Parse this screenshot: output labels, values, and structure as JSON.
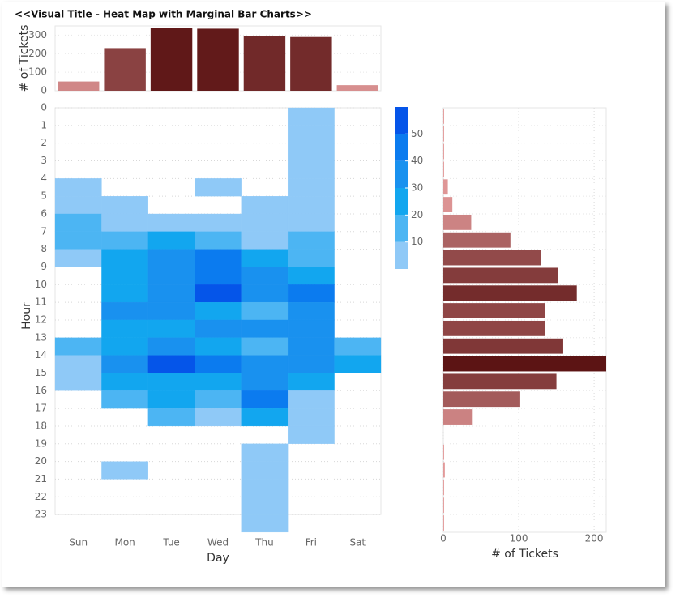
{
  "title": "<<Visual Title - Heat Map with Marginal Bar Charts>>",
  "chart_data": [
    {
      "type": "bar",
      "y_label": "# of Tickets",
      "values": [
        50,
        230,
        340,
        335,
        295,
        290,
        30
      ],
      "ylim": [
        0,
        350
      ],
      "yticks": [
        0,
        100,
        200,
        300
      ],
      "color_range": [
        "#e39a9a",
        "#5c1414"
      ]
    },
    {
      "type": "heatmap",
      "x_label": "Day",
      "y_label": "Hour",
      "x_categories": [
        "Sun",
        "Mon",
        "Tue",
        "Wed",
        "Thu",
        "Fri",
        "Sat"
      ],
      "y_categories": [
        0,
        1,
        2,
        3,
        4,
        5,
        6,
        7,
        8,
        9,
        10,
        11,
        12,
        13,
        14,
        15,
        16,
        17,
        18,
        19,
        20,
        21,
        22,
        23
      ],
      "values": [
        [
          null,
          null,
          null,
          null,
          null,
          3,
          null
        ],
        [
          null,
          null,
          null,
          null,
          null,
          3,
          null
        ],
        [
          null,
          null,
          null,
          null,
          null,
          3,
          null
        ],
        [
          null,
          null,
          null,
          null,
          null,
          3,
          null
        ],
        [
          3,
          null,
          null,
          3,
          null,
          3,
          null
        ],
        [
          3,
          3,
          null,
          null,
          3,
          3,
          null
        ],
        [
          12,
          3,
          3,
          3,
          3,
          3,
          null
        ],
        [
          12,
          15,
          22,
          15,
          3,
          15,
          null
        ],
        [
          3,
          22,
          35,
          45,
          22,
          15,
          null
        ],
        [
          null,
          22,
          35,
          42,
          32,
          25,
          null
        ],
        [
          null,
          22,
          32,
          55,
          32,
          40,
          null
        ],
        [
          null,
          32,
          35,
          25,
          15,
          35,
          null
        ],
        [
          null,
          25,
          28,
          35,
          32,
          35,
          null
        ],
        [
          12,
          22,
          38,
          25,
          15,
          35,
          10
        ],
        [
          3,
          32,
          50,
          42,
          35,
          35,
          20
        ],
        [
          3,
          22,
          25,
          28,
          32,
          25,
          null
        ],
        [
          null,
          15,
          22,
          15,
          42,
          3,
          null
        ],
        [
          null,
          null,
          15,
          3,
          22,
          3,
          null
        ],
        [
          null,
          null,
          null,
          null,
          null,
          3,
          null
        ],
        [
          null,
          null,
          null,
          null,
          3,
          null,
          null
        ],
        [
          null,
          3,
          null,
          null,
          3,
          null,
          null
        ],
        [
          null,
          null,
          null,
          null,
          3,
          null,
          null
        ],
        [
          null,
          null,
          null,
          null,
          3,
          null,
          null
        ],
        [
          null,
          null,
          null,
          null,
          3,
          null,
          null
        ]
      ],
      "clim": [
        0,
        60
      ],
      "cticks": [
        10,
        20,
        30,
        40,
        50
      ],
      "colorscale": [
        "#8fc9f7",
        "#4cb5f3",
        "#12a6ef",
        "#1991ef",
        "#0b7bef",
        "#0555e9"
      ]
    },
    {
      "type": "hbar",
      "x_label": "# of Tickets",
      "values": [
        1,
        1,
        1,
        1,
        6,
        12,
        37,
        89,
        129,
        152,
        177,
        135,
        135,
        159,
        216,
        150,
        102,
        39,
        0,
        1,
        2,
        1,
        1,
        1
      ],
      "xlim": [
        0,
        216
      ],
      "xticks": [
        0,
        100,
        200
      ],
      "color_range": [
        "#e39a9a",
        "#5c1414"
      ]
    }
  ]
}
